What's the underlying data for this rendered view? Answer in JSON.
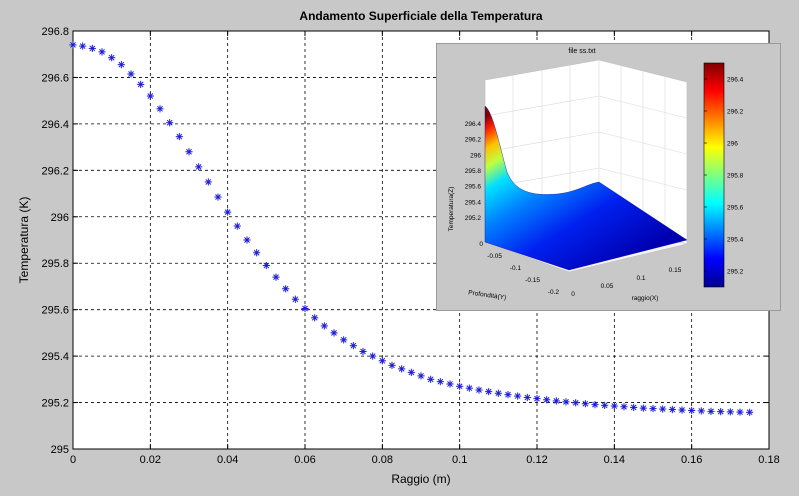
{
  "chart_data": [
    {
      "type": "scatter",
      "title": "Andamento Superficiale della Temperatura",
      "xlabel": "Raggio (m)",
      "ylabel": "Temperatura (K)",
      "xlim": [
        0,
        0.18
      ],
      "ylim": [
        295,
        296.8
      ],
      "x_ticks": [
        "0",
        "0.02",
        "0.04",
        "0.06",
        "0.08",
        "0.1",
        "0.12",
        "0.14",
        "0.16",
        "0.18"
      ],
      "y_ticks": [
        "295",
        "295.2",
        "295.4",
        "295.6",
        "295.8",
        "296",
        "296.2",
        "296.4",
        "296.6",
        "296.8"
      ],
      "grid": true,
      "marker": "*",
      "marker_color": "#1c1cd8",
      "series": [
        {
          "x": [
            0,
            0.0025,
            0.005,
            0.0075,
            0.01,
            0.0125,
            0.015,
            0.0175,
            0.02,
            0.0225,
            0.025,
            0.0275,
            0.03,
            0.0325,
            0.035,
            0.0375,
            0.04,
            0.0425,
            0.045,
            0.0475,
            0.05,
            0.0525,
            0.055,
            0.0575,
            0.06,
            0.0625,
            0.065,
            0.0675,
            0.07,
            0.0725,
            0.075,
            0.0775,
            0.08,
            0.0825,
            0.085,
            0.0875,
            0.09,
            0.0925,
            0.095,
            0.0975,
            0.1,
            0.1025,
            0.105,
            0.1075,
            0.11,
            0.1125,
            0.115,
            0.1175,
            0.12,
            0.1225,
            0.125,
            0.1275,
            0.13,
            0.1325,
            0.135,
            0.1375,
            0.14,
            0.1425,
            0.145,
            0.1475,
            0.15,
            0.1525,
            0.155,
            0.1575,
            0.16,
            0.1625,
            0.165,
            0.1675,
            0.17,
            0.1725,
            0.175
          ],
          "y": [
            296.74,
            296.735,
            296.725,
            296.71,
            296.685,
            296.655,
            296.615,
            296.57,
            296.52,
            296.465,
            296.405,
            296.345,
            296.28,
            296.215,
            296.15,
            296.085,
            296.02,
            295.96,
            295.9,
            295.845,
            295.79,
            295.74,
            295.69,
            295.645,
            295.605,
            295.565,
            295.53,
            295.5,
            295.47,
            295.445,
            295.42,
            295.4,
            295.38,
            295.36,
            295.345,
            295.33,
            295.315,
            295.3,
            295.29,
            295.28,
            295.27,
            295.262,
            295.254,
            295.247,
            295.24,
            295.234,
            295.228,
            295.222,
            295.217,
            295.212,
            295.207,
            295.203,
            295.199,
            295.195,
            295.191,
            295.188,
            295.185,
            295.182,
            295.179,
            295.176,
            295.174,
            295.172,
            295.17,
            295.168,
            295.166,
            295.164,
            295.162,
            295.161,
            295.16,
            295.159,
            295.158
          ]
        }
      ]
    },
    {
      "type": "surface",
      "title": "file ss.txt",
      "xlabel": "raggio(X)",
      "ylabel": "Profondità(Y)",
      "zlabel": "Temperatura(Z)",
      "x_ticks": [
        "0",
        "0.05",
        "0.1",
        "0.15"
      ],
      "y_ticks": [
        "0",
        "-0.05",
        "-0.1",
        "-0.15",
        "-0.2"
      ],
      "z_ticks": [
        "295.2",
        "295.4",
        "295.6",
        "295.8",
        "296",
        "296.2",
        "296.4"
      ],
      "colorbar_ticks": [
        "295.2",
        "295.4",
        "295.6",
        "295.8",
        "296",
        "296.2",
        "296.4"
      ],
      "colormap": "jet",
      "zlim": [
        295.1,
        296.5
      ]
    }
  ]
}
